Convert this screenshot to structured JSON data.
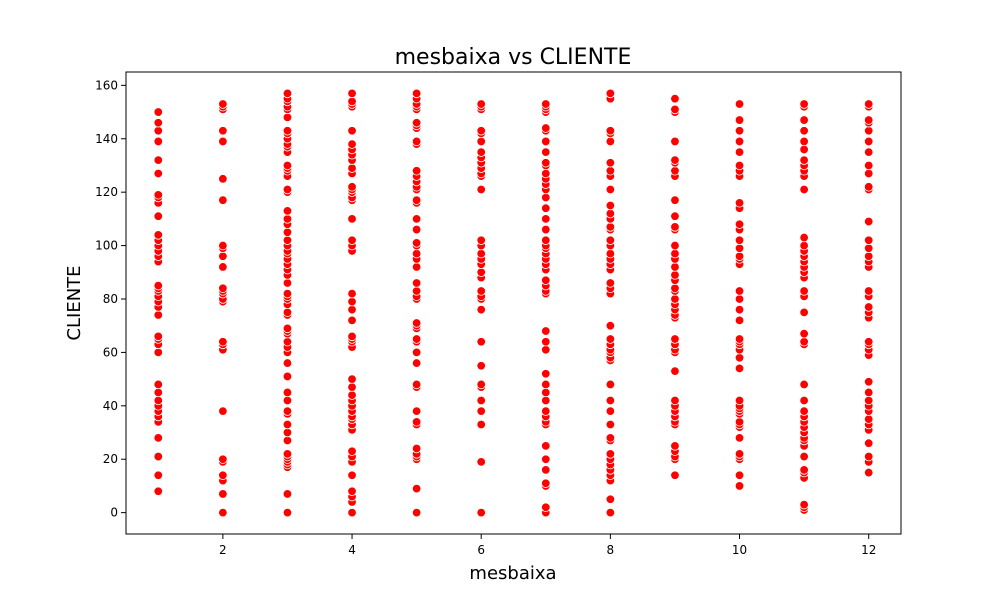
{
  "chart_data": {
    "type": "scatter",
    "title": "mesbaixa vs CLIENTE",
    "xlabel": "mesbaixa",
    "ylabel": "CLIENTE",
    "xlim": [
      0.5,
      12.5
    ],
    "ylim": [
      -8,
      165
    ],
    "x_ticks": [
      2,
      4,
      6,
      8,
      10,
      12
    ],
    "y_ticks": [
      0,
      20,
      40,
      60,
      80,
      100,
      120,
      140,
      160
    ],
    "grid": false,
    "legend": "none",
    "marker_color": "#ff0000",
    "marker_edge_color": "#ffffff",
    "series": [
      {
        "points": [
          {
            "x": 1,
            "ys": [
              8,
              14,
              21,
              28,
              34,
              36,
              38,
              40,
              42,
              45,
              48,
              60,
              63,
              65,
              66,
              74,
              77,
              79,
              81,
              83,
              84,
              85,
              94,
              96,
              98,
              100,
              102,
              104,
              111,
              116,
              118,
              119,
              127,
              132,
              139,
              143,
              146,
              150
            ]
          },
          {
            "x": 2,
            "ys": [
              0,
              7,
              12,
              14,
              19,
              20,
              38,
              61,
              63,
              64,
              79,
              80,
              82,
              83,
              84,
              92,
              96,
              99,
              100,
              117,
              125,
              139,
              143,
              151,
              152,
              153
            ]
          },
          {
            "x": 3,
            "ys": [
              0,
              7,
              17,
              18,
              19,
              20,
              21,
              22,
              27,
              30,
              33,
              37,
              38,
              42,
              45,
              51,
              56,
              60,
              62,
              64,
              67,
              68,
              69,
              74,
              75,
              78,
              80,
              81,
              82,
              86,
              89,
              91,
              93,
              95,
              97,
              98,
              100,
              102,
              105,
              108,
              110,
              113,
              120,
              121,
              126,
              128,
              129,
              130,
              135,
              137,
              138,
              140,
              142,
              143,
              148,
              151,
              152,
              154,
              155,
              157
            ]
          },
          {
            "x": 4,
            "ys": [
              0,
              4,
              6,
              8,
              14,
              19,
              21,
              23,
              31,
              33,
              35,
              36,
              38,
              40,
              42,
              44,
              47,
              50,
              62,
              64,
              65,
              66,
              72,
              76,
              79,
              82,
              98,
              100,
              102,
              110,
              117,
              118,
              120,
              121,
              122,
              127,
              129,
              132,
              134,
              136,
              138,
              143,
              152,
              153,
              154,
              157
            ]
          },
          {
            "x": 5,
            "ys": [
              0,
              9,
              20,
              21,
              22,
              24,
              33,
              34,
              38,
              47,
              48,
              56,
              60,
              64,
              65,
              69,
              70,
              71,
              80,
              81,
              83,
              86,
              92,
              95,
              97,
              100,
              101,
              106,
              110,
              116,
              117,
              121,
              122,
              124,
              126,
              128,
              138,
              139,
              144,
              145,
              146,
              151,
              152,
              153,
              155,
              157
            ]
          },
          {
            "x": 6,
            "ys": [
              0,
              19,
              33,
              38,
              42,
              47,
              48,
              55,
              64,
              76,
              80,
              81,
              83,
              88,
              90,
              93,
              95,
              97,
              100,
              102,
              121,
              126,
              127,
              129,
              131,
              133,
              135,
              139,
              142,
              143,
              151,
              152,
              153
            ]
          },
          {
            "x": 7,
            "ys": [
              0,
              2,
              10,
              11,
              16,
              20,
              25,
              33,
              34,
              36,
              38,
              42,
              45,
              48,
              52,
              61,
              64,
              68,
              82,
              83,
              85,
              87,
              91,
              93,
              95,
              97,
              99,
              100,
              102,
              106,
              110,
              114,
              118,
              121,
              123,
              125,
              127,
              130,
              131,
              135,
              139,
              143,
              144,
              150,
              151,
              152,
              153
            ]
          },
          {
            "x": 8,
            "ys": [
              0,
              5,
              12,
              14,
              16,
              18,
              20,
              22,
              27,
              28,
              33,
              38,
              42,
              48,
              57,
              58,
              60,
              61,
              63,
              65,
              70,
              82,
              84,
              86,
              91,
              93,
              95,
              97,
              100,
              102,
              106,
              107,
              110,
              112,
              115,
              121,
              126,
              128,
              131,
              139,
              142,
              143,
              155,
              157
            ]
          },
          {
            "x": 9,
            "ys": [
              14,
              20,
              21,
              23,
              25,
              33,
              34,
              36,
              38,
              40,
              42,
              53,
              60,
              61,
              63,
              65,
              73,
              74,
              76,
              78,
              80,
              83,
              84,
              87,
              89,
              92,
              95,
              97,
              100,
              106,
              107,
              111,
              117,
              126,
              128,
              131,
              132,
              139,
              150,
              151,
              155
            ]
          },
          {
            "x": 10,
            "ys": [
              10,
              14,
              20,
              21,
              22,
              28,
              32,
              33,
              34,
              37,
              38,
              39,
              40,
              42,
              54,
              58,
              61,
              63,
              64,
              65,
              72,
              76,
              80,
              83,
              93,
              95,
              96,
              99,
              102,
              106,
              108,
              114,
              116,
              126,
              128,
              130,
              135,
              139,
              143,
              147,
              153
            ]
          },
          {
            "x": 11,
            "ys": [
              1,
              2,
              3,
              13,
              15,
              16,
              21,
              25,
              27,
              28,
              30,
              32,
              34,
              36,
              38,
              42,
              48,
              63,
              64,
              67,
              75,
              81,
              83,
              88,
              90,
              92,
              94,
              96,
              98,
              100,
              103,
              121,
              126,
              128,
              130,
              132,
              136,
              139,
              143,
              147,
              152,
              153
            ]
          },
          {
            "x": 12,
            "ys": [
              15,
              19,
              21,
              26,
              31,
              33,
              35,
              38,
              40,
              42,
              45,
              49,
              59,
              61,
              63,
              64,
              73,
              75,
              77,
              81,
              83,
              92,
              94,
              96,
              99,
              102,
              109,
              121,
              122,
              127,
              130,
              135,
              139,
              143,
              146,
              147,
              152,
              153
            ]
          }
        ]
      }
    ]
  }
}
